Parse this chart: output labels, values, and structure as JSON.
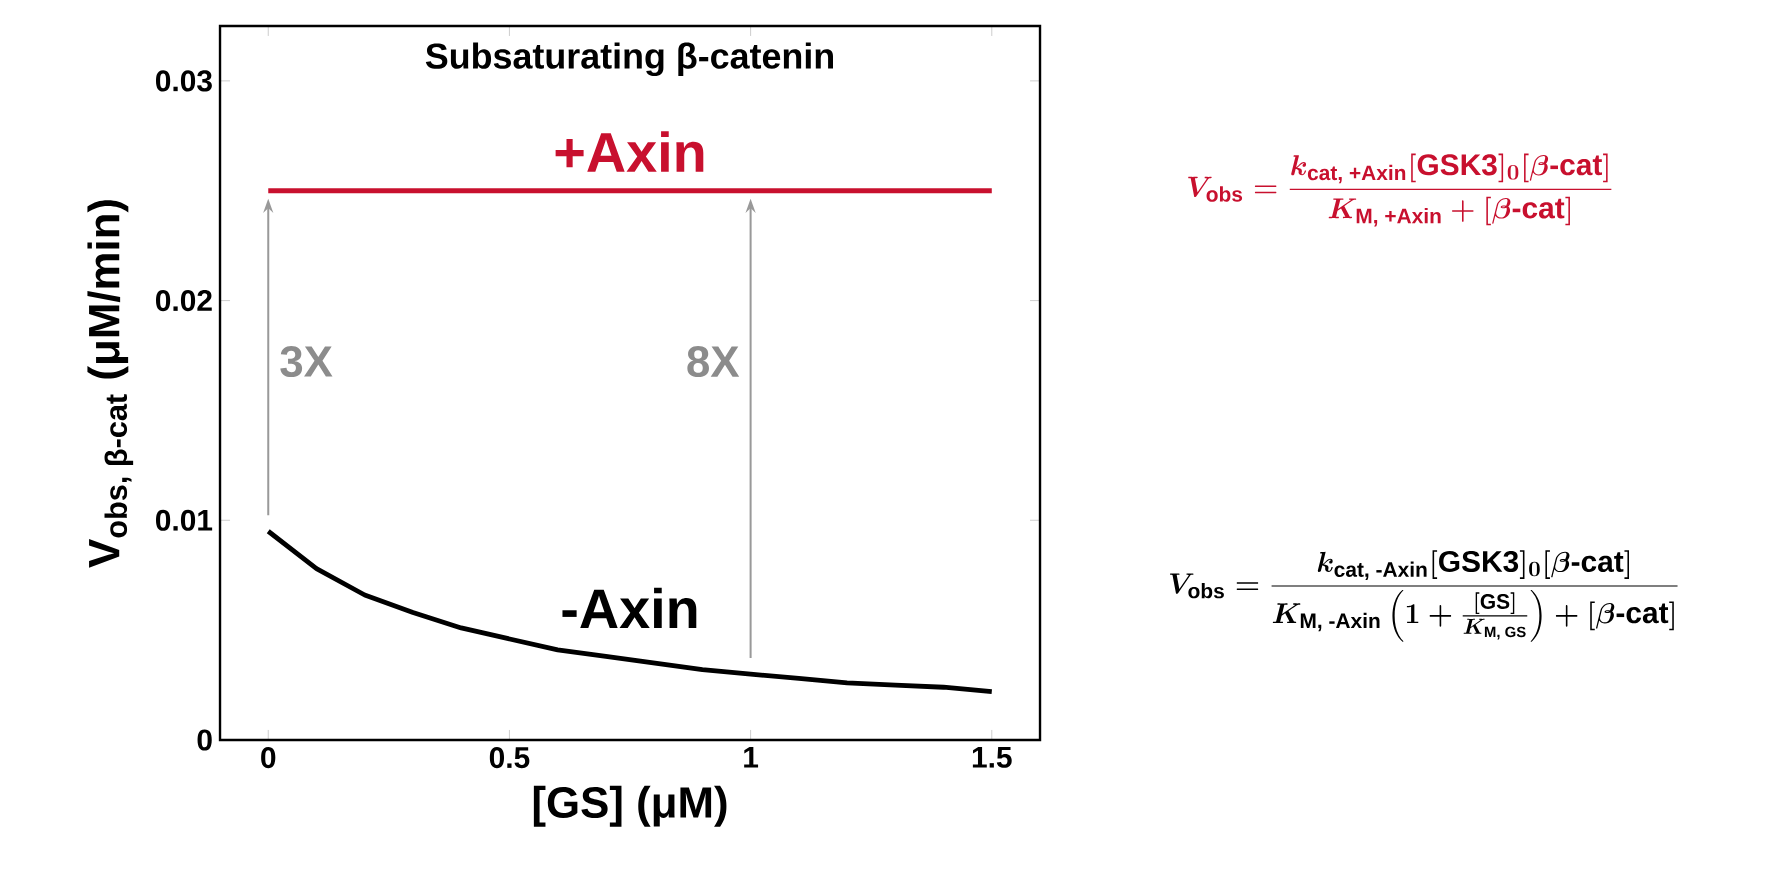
{
  "chart_data": {
    "type": "line",
    "title": "Subsaturating β-catenin",
    "xlabel": "[GS] (μM)",
    "ylabel": "\\text{V}_{\\text{obs, β-cat}}\\text{ (μM/min)}",
    "xlim": [
      -0.1,
      1.6
    ],
    "xticks": [
      0,
      0.5,
      1,
      1.5
    ],
    "ylim": [
      0,
      0.0325
    ],
    "yticks": [
      0,
      0.01,
      0.02,
      0.03
    ],
    "series": [
      {
        "name": "+Axin",
        "color": "#c8102e",
        "x": [
          0,
          1.5
        ],
        "values": [
          0.025,
          0.025
        ]
      },
      {
        "name": "-Axin",
        "color": "#000000",
        "x": [
          0,
          0.1,
          0.2,
          0.3,
          0.4,
          0.5,
          0.6,
          0.7,
          0.8,
          0.9,
          1.0,
          1.1,
          1.2,
          1.3,
          1.4,
          1.5
        ],
        "values": [
          0.0095,
          0.0078,
          0.0066,
          0.0058,
          0.0051,
          0.0046,
          0.0041,
          0.0038,
          0.0035,
          0.0032,
          0.003,
          0.0028,
          0.0026,
          0.0025,
          0.0024,
          0.0022
        ]
      }
    ],
    "annotations": [
      "3X",
      "8X",
      "V_{\\mathrm{obs}} = \\frac{k_{\\text{cat, +Axin}}[\\mathrm{GSK3}]_{0}[\\beta\\text{-cat}]}{K_{\\text{M, +Axin}}+[\\beta\\text{-cat}]}",
      "V_{\\mathrm{obs}} = \\frac{k_{\\text{cat, -Axin}}[\\mathrm{GSK3}]_{0}[\\beta\\text{-cat}]}{K_{\\text{M, -Axin}}\\left(1+\\frac{[\\mathrm{GS}]}{K_{\\text{M, GS}}}\\right)+[\\beta\\text{-cat}]}"
    ],
    "grid": false,
    "legend": false,
    "line_style": "solid",
    "marker": "none"
  }
}
